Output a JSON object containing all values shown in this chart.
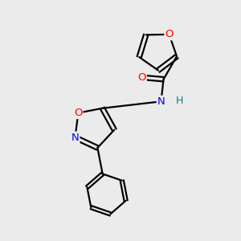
{
  "background_color": "#ebebeb",
  "bond_color": "#000000",
  "atom_colors": {
    "O": "#ff0000",
    "N": "#0000ff",
    "H": "#008080"
  },
  "font_size": 9.5,
  "lw": 1.6,
  "figsize": [
    3.0,
    3.0
  ],
  "dpi": 100
}
